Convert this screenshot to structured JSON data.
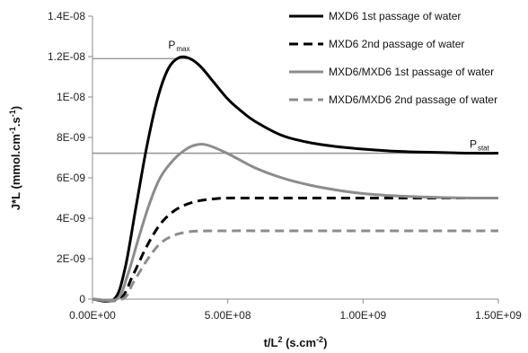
{
  "chart_data": {
    "type": "line",
    "xlabel_main": "t/L",
    "xlabel_sup": "2",
    "xlabel_rest": " (s.cm",
    "xlabel_sup2": "-2",
    "xlabel_end": ")",
    "ylabel_main": "J*L (mmol.cm",
    "ylabel_sup": "-1",
    "ylabel_mid": ".s",
    "ylabel_sup2": "-1",
    "ylabel_end": ")",
    "xlim": [
      0,
      1500000000
    ],
    "ylim": [
      0,
      1.4e-08
    ],
    "x_ticks": [
      0,
      500000000,
      1000000000,
      1500000000
    ],
    "x_tick_labels": [
      "0.00E+00",
      "5.00E+08",
      "1.00E+09",
      "1.50E+09"
    ],
    "y_ticks": [
      0,
      2e-09,
      4e-09,
      6e-09,
      8e-09,
      1e-08,
      1.2e-08,
      1.4e-08
    ],
    "y_tick_labels": [
      "0",
      "2E-09",
      "4E-09",
      "6E-09",
      "8E-09",
      "1E-08",
      "1.2E-08",
      "1.4E-08"
    ],
    "grid": false,
    "legend_position": "top-right",
    "reference_lines": [
      {
        "y": 1.19e-08,
        "x_from": 0,
        "x_to": 350000000,
        "color": "#8c8c8c"
      },
      {
        "y": 7.22e-09,
        "x_from": 0,
        "x_to": 1500000000,
        "color": "#8c8c8c"
      }
    ],
    "annotations": [
      {
        "main": "P",
        "sub": "max",
        "x": 320000000,
        "y": 1.24e-08
      },
      {
        "main": "P",
        "sub": "stat",
        "x": 1430000000,
        "y": 7.5e-09
      }
    ],
    "series": [
      {
        "name": "MXD6 1st passage of water",
        "color": "#000000",
        "dash": "none",
        "points": [
          [
            0,
            0
          ],
          [
            80000000,
            0
          ],
          [
            120000000,
            1.5e-09
          ],
          [
            160000000,
            4.5e-09
          ],
          [
            200000000,
            7.5e-09
          ],
          [
            240000000,
            9.9e-09
          ],
          [
            280000000,
            1.14e-08
          ],
          [
            320000000,
            1.195e-08
          ],
          [
            360000000,
            1.19e-08
          ],
          [
            400000000,
            1.15e-08
          ],
          [
            450000000,
            1.07e-08
          ],
          [
            500000000,
            9.9e-09
          ],
          [
            550000000,
            9.3e-09
          ],
          [
            600000000,
            8.8e-09
          ],
          [
            700000000,
            8.1e-09
          ],
          [
            800000000,
            7.75e-09
          ],
          [
            900000000,
            7.55e-09
          ],
          [
            1000000000,
            7.42e-09
          ],
          [
            1100000000,
            7.33e-09
          ],
          [
            1200000000,
            7.28e-09
          ],
          [
            1300000000,
            7.25e-09
          ],
          [
            1400000000,
            7.22e-09
          ],
          [
            1500000000,
            7.22e-09
          ]
        ]
      },
      {
        "name": "MXD6 2nd passage of water",
        "color": "#000000",
        "dash": "10,6",
        "points": [
          [
            0,
            0
          ],
          [
            100000000,
            0
          ],
          [
            150000000,
            1.2e-09
          ],
          [
            200000000,
            2.6e-09
          ],
          [
            250000000,
            3.7e-09
          ],
          [
            300000000,
            4.35e-09
          ],
          [
            350000000,
            4.7e-09
          ],
          [
            400000000,
            4.88e-09
          ],
          [
            450000000,
            4.96e-09
          ],
          [
            500000000,
            5e-09
          ],
          [
            600000000,
            5e-09
          ],
          [
            800000000,
            5e-09
          ],
          [
            1000000000,
            5e-09
          ],
          [
            1200000000,
            5e-09
          ],
          [
            1500000000,
            5e-09
          ]
        ]
      },
      {
        "name": "MXD6/MXD6 1st passage of water",
        "color": "#8c8c8c",
        "dash": "none",
        "points": [
          [
            0,
            0
          ],
          [
            90000000,
            0
          ],
          [
            130000000,
            1.2e-09
          ],
          [
            170000000,
            3e-09
          ],
          [
            210000000,
            4.7e-09
          ],
          [
            250000000,
            6e-09
          ],
          [
            300000000,
            6.9e-09
          ],
          [
            350000000,
            7.45e-09
          ],
          [
            390000000,
            7.65e-09
          ],
          [
            430000000,
            7.6e-09
          ],
          [
            500000000,
            7.2e-09
          ],
          [
            600000000,
            6.5e-09
          ],
          [
            700000000,
            6e-09
          ],
          [
            800000000,
            5.65e-09
          ],
          [
            900000000,
            5.4e-09
          ],
          [
            1000000000,
            5.22e-09
          ],
          [
            1100000000,
            5.12e-09
          ],
          [
            1200000000,
            5.06e-09
          ],
          [
            1300000000,
            5.02e-09
          ],
          [
            1400000000,
            5e-09
          ],
          [
            1500000000,
            5e-09
          ]
        ]
      },
      {
        "name": "MXD6/MXD6 2nd passage of water",
        "color": "#8c8c8c",
        "dash": "10,6",
        "points": [
          [
            0,
            0
          ],
          [
            110000000,
            0
          ],
          [
            150000000,
            8e-10
          ],
          [
            200000000,
            1.9e-09
          ],
          [
            250000000,
            2.75e-09
          ],
          [
            300000000,
            3.15e-09
          ],
          [
            350000000,
            3.32e-09
          ],
          [
            400000000,
            3.37e-09
          ],
          [
            500000000,
            3.38e-09
          ],
          [
            700000000,
            3.38e-09
          ],
          [
            1000000000,
            3.38e-09
          ],
          [
            1500000000,
            3.38e-09
          ]
        ]
      }
    ]
  }
}
